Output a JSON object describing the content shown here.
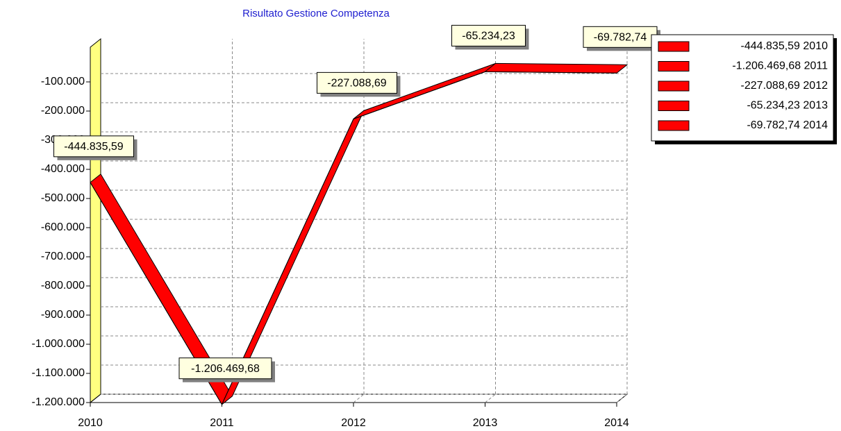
{
  "chart_data": {
    "type": "line",
    "title": "Risultato Gestione Competenza",
    "categories": [
      "2010",
      "2011",
      "2012",
      "2013",
      "2014"
    ],
    "values": [
      -444835.59,
      -1206469.68,
      -227088.69,
      -65234.23,
      -69782.74
    ],
    "value_labels": [
      "-444.835,59",
      "-1.206.469,68",
      "-227.088,69",
      "-65.234,23",
      "-69.782,74"
    ],
    "color": "#ff0000",
    "ylim": [
      -1200000,
      0
    ],
    "yticks": [
      {
        "value": -1200000,
        "label": "-1.200.000"
      },
      {
        "value": -1100000,
        "label": "-1.100.000"
      },
      {
        "value": -1000000,
        "label": "-1.000.000"
      },
      {
        "value": -900000,
        "label": "-900.000"
      },
      {
        "value": -800000,
        "label": "-800.000"
      },
      {
        "value": -700000,
        "label": "-700.000"
      },
      {
        "value": -600000,
        "label": "-600.000"
      },
      {
        "value": -500000,
        "label": "-500.000"
      },
      {
        "value": -400000,
        "label": "-400.000"
      },
      {
        "value": -300000,
        "label": "-300.000"
      },
      {
        "value": -200000,
        "label": "-200.000"
      },
      {
        "value": -100000,
        "label": "-100.000"
      }
    ],
    "grid": true,
    "legend": "right"
  }
}
